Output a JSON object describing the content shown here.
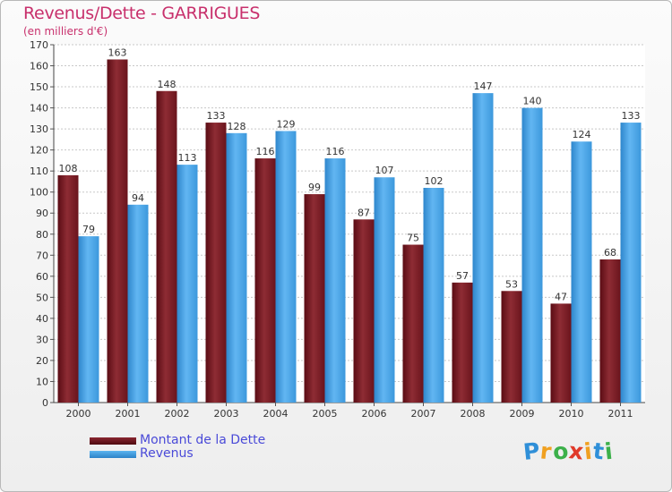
{
  "chart_data": {
    "type": "bar",
    "title": "Revenus/Dette - GARRIGUES",
    "subtitle": "(en milliers d'€)",
    "categories": [
      "2000",
      "2001",
      "2002",
      "2003",
      "2004",
      "2005",
      "2006",
      "2007",
      "2008",
      "2009",
      "2010",
      "2011"
    ],
    "series": [
      {
        "name": "Montant de la Dette",
        "values": [
          108,
          163,
          148,
          133,
          116,
          99,
          87,
          75,
          57,
          53,
          47,
          68
        ],
        "color": "#7a1a22"
      },
      {
        "name": "Revenus",
        "values": [
          79,
          94,
          113,
          128,
          129,
          116,
          107,
          102,
          147,
          140,
          124,
          133
        ],
        "color": "#4da6e8"
      }
    ],
    "ylim": [
      0,
      170
    ],
    "yticks": [
      0,
      10,
      20,
      30,
      40,
      50,
      60,
      70,
      80,
      90,
      100,
      110,
      120,
      130,
      140,
      150,
      160,
      170
    ],
    "grid": true,
    "legend_position": "bottom-left"
  },
  "logo": {
    "letters": [
      "P",
      "r",
      "o",
      "x",
      "i",
      "t",
      "i"
    ],
    "colors": [
      "#2f8fd8",
      "#f0a020",
      "#3cb04a",
      "#e03a2a",
      "#f0a020",
      "#2f8fd8",
      "#3cb04a"
    ]
  }
}
